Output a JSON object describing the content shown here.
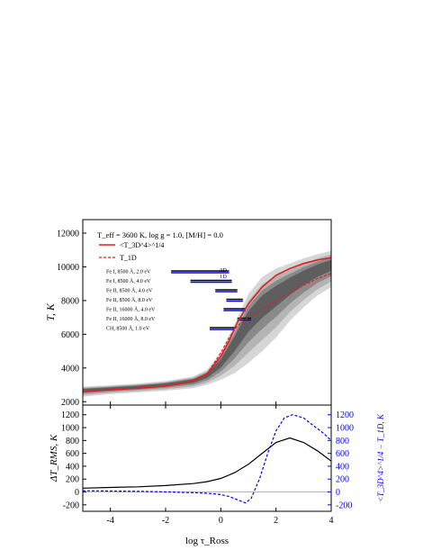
{
  "chart_data": [
    {
      "type": "scatter",
      "panel": "top",
      "title": "",
      "annotation": "T_eff = 3600 K, log g = 1.0, [M/H] = 0.0",
      "xlabel": "",
      "ylabel": "T, K",
      "xlim": [
        -5,
        4
      ],
      "ylim": [
        1800,
        12800
      ],
      "y_ticks": [
        2000,
        4000,
        6000,
        8000,
        10000,
        12000
      ],
      "grid": false,
      "legend_position": "top-left",
      "legend": [
        {
          "label": "<T_3D^4>^1/4",
          "style": "solid",
          "color": "#e02020"
        },
        {
          "label": "T_1D",
          "style": "dashed",
          "color": "#e02020"
        }
      ],
      "series": [
        {
          "name": "<T_3D^4>^1/4",
          "x": [
            -5,
            -4,
            -3,
            -2,
            -1.5,
            -1,
            -0.5,
            0,
            0.3,
            0.6,
            1,
            1.5,
            2,
            2.5,
            3,
            3.5,
            4
          ],
          "y": [
            2600,
            2700,
            2800,
            2930,
            3050,
            3250,
            3650,
            4700,
            5600,
            6700,
            7800,
            8800,
            9500,
            9900,
            10200,
            10400,
            10550
          ]
        },
        {
          "name": "T_1D",
          "x": [
            -5,
            -4,
            -3,
            -2,
            -1.5,
            -1,
            -0.5,
            0,
            0.3,
            0.6,
            1,
            1.5,
            2,
            2.5,
            3,
            3.5,
            4
          ],
          "y": [
            2600,
            2700,
            2800,
            2950,
            3080,
            3250,
            3650,
            4900,
            5800,
            6500,
            7000,
            7500,
            8000,
            8500,
            8900,
            9300,
            9600
          ]
        }
      ],
      "scatter_envelope": {
        "x": [
          -5,
          -4,
          -3,
          -2,
          -1,
          -0.5,
          0,
          0.5,
          1,
          1.5,
          2,
          2.5,
          3,
          3.5,
          4
        ],
        "y_low": [
          2300,
          2450,
          2550,
          2650,
          2800,
          3000,
          3300,
          3700,
          4300,
          5000,
          5800,
          6800,
          7600,
          8300,
          8800
        ],
        "y_high": [
          2900,
          2980,
          3080,
          3230,
          3500,
          3900,
          4900,
          6600,
          8400,
          9400,
          9900,
          10200,
          10500,
          10750,
          10950
        ]
      },
      "formation_ranges": [
        {
          "label": "Fe I, 8500 Å, 2.0 eV",
          "range_3d": [
            -1.8,
            0.3
          ],
          "range_1d": [
            -1.8,
            0.3
          ]
        },
        {
          "label": "Fe I, 8500 Å, 4.0 eV",
          "range_3d": [
            -1.1,
            0.4
          ],
          "range_1d": [
            -1.1,
            0.4
          ]
        },
        {
          "label": "Fe II, 8500 Å, 4.0 eV",
          "range_3d": [
            -0.2,
            0.6
          ],
          "range_1d": [
            -0.2,
            0.6
          ]
        },
        {
          "label": "Fe II, 8500 Å, 8.0 eV",
          "range_3d": [
            0.2,
            0.8
          ],
          "range_1d": [
            0.2,
            0.8
          ]
        },
        {
          "label": "Fe II, 16000 Å, 4.0 eV",
          "range_3d": [
            0.1,
            0.9
          ],
          "range_1d": [
            0.1,
            0.9
          ]
        },
        {
          "label": "Fe II, 16000 Å, 8.0 eV",
          "range_3d": [
            0.6,
            1.1
          ],
          "range_1d": [
            0.6,
            1.1
          ]
        },
        {
          "label": "CH, 8500 Å, 1.0 eV",
          "range_3d": [
            -0.4,
            0.5
          ],
          "range_1d": [
            -0.4,
            0.5
          ]
        }
      ],
      "range_labels": {
        "three_d": "3D",
        "one_d": "1D"
      }
    },
    {
      "type": "line",
      "panel": "bottom",
      "xlabel": "log τ_Ross",
      "ylabel_left": "ΔT_RMS, K",
      "ylabel_right": "<T_3D^4>^1/4 − T_1D, K",
      "xlim": [
        -5,
        4
      ],
      "ylim": [
        -300,
        1350
      ],
      "x_ticks": [
        -4,
        -2,
        0,
        2,
        4
      ],
      "y_ticks": [
        -200,
        0,
        200,
        400,
        600,
        800,
        1000,
        1200
      ],
      "zero_line": true,
      "series": [
        {
          "name": "ΔT_RMS",
          "color": "#000000",
          "style": "solid",
          "x": [
            -5,
            -4,
            -3,
            -2,
            -1,
            -0.5,
            0,
            0.5,
            1,
            1.5,
            2,
            2.5,
            3,
            3.5,
            4
          ],
          "y": [
            60,
            70,
            80,
            100,
            130,
            160,
            210,
            300,
            430,
            600,
            770,
            840,
            770,
            640,
            480
          ]
        },
        {
          "name": "<T_3D^4>^1/4 − T_1D",
          "color": "#0000ee",
          "style": "dashed",
          "x": [
            -5,
            -4,
            -3,
            -2,
            -1,
            -0.5,
            0,
            0.3,
            0.6,
            0.9,
            1.1,
            1.4,
            1.7,
            2,
            2.3,
            2.6,
            3,
            3.3,
            3.7,
            4
          ],
          "y": [
            20,
            15,
            10,
            0,
            -10,
            -20,
            -40,
            -70,
            -120,
            -170,
            -100,
            200,
            600,
            950,
            1150,
            1200,
            1150,
            1050,
            920,
            800
          ]
        }
      ]
    }
  ]
}
